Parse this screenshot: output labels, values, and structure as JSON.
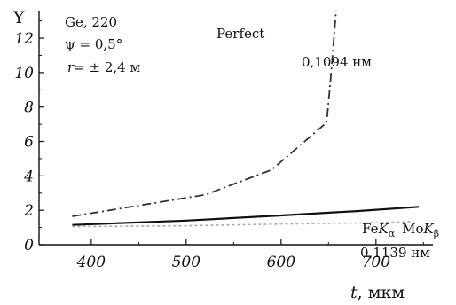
{
  "chart_data": {
    "type": "line",
    "ylabel": "Y",
    "xlabel_var": "t",
    "xlabel_unit": ", мкм",
    "xlim": [
      345,
      760
    ],
    "ylim": [
      0,
      13.6
    ],
    "xticks": [
      400,
      500,
      600,
      700
    ],
    "xtick_labels": [
      "400",
      "500",
      "600",
      "700"
    ],
    "yticks": [
      0,
      2,
      4,
      6,
      8,
      10,
      12
    ],
    "ytick_labels": [
      "0",
      "2",
      "4",
      "6",
      "8",
      "10",
      "12"
    ],
    "grid": false,
    "series": [
      {
        "name": "Perfect",
        "style": "dash-dot",
        "color": "#333333",
        "x": [
          380,
          520,
          590,
          648,
          652,
          658
        ],
        "y": [
          1.65,
          2.9,
          4.35,
          7.1,
          9.5,
          13.6
        ]
      },
      {
        "style": "solid",
        "color": "#111111",
        "x": [
          380,
          500,
          600,
          680,
          745
        ],
        "y": [
          1.15,
          1.4,
          1.7,
          1.95,
          2.2
        ]
      },
      {
        "style": "dotted",
        "color": "#aaaaaa",
        "x": [
          380,
          500,
          600,
          700,
          740
        ],
        "y": [
          1.05,
          1.1,
          1.2,
          1.28,
          1.35
        ]
      }
    ],
    "annotations": {
      "crystal": "Ge, 220",
      "psi": "ψ = 0,5°",
      "r_var": "r",
      "r_value": "= ± 2,4 м",
      "perfect_label": "Perfect",
      "wavelength_top": "0,1094 нм",
      "fe_text": "Fe",
      "fe_k": "K",
      "fe_sub": "α",
      "mo_text": "Mo",
      "mo_k": "K",
      "mo_sub": "β",
      "wavelength_bottom": "0,1139 нм"
    }
  }
}
